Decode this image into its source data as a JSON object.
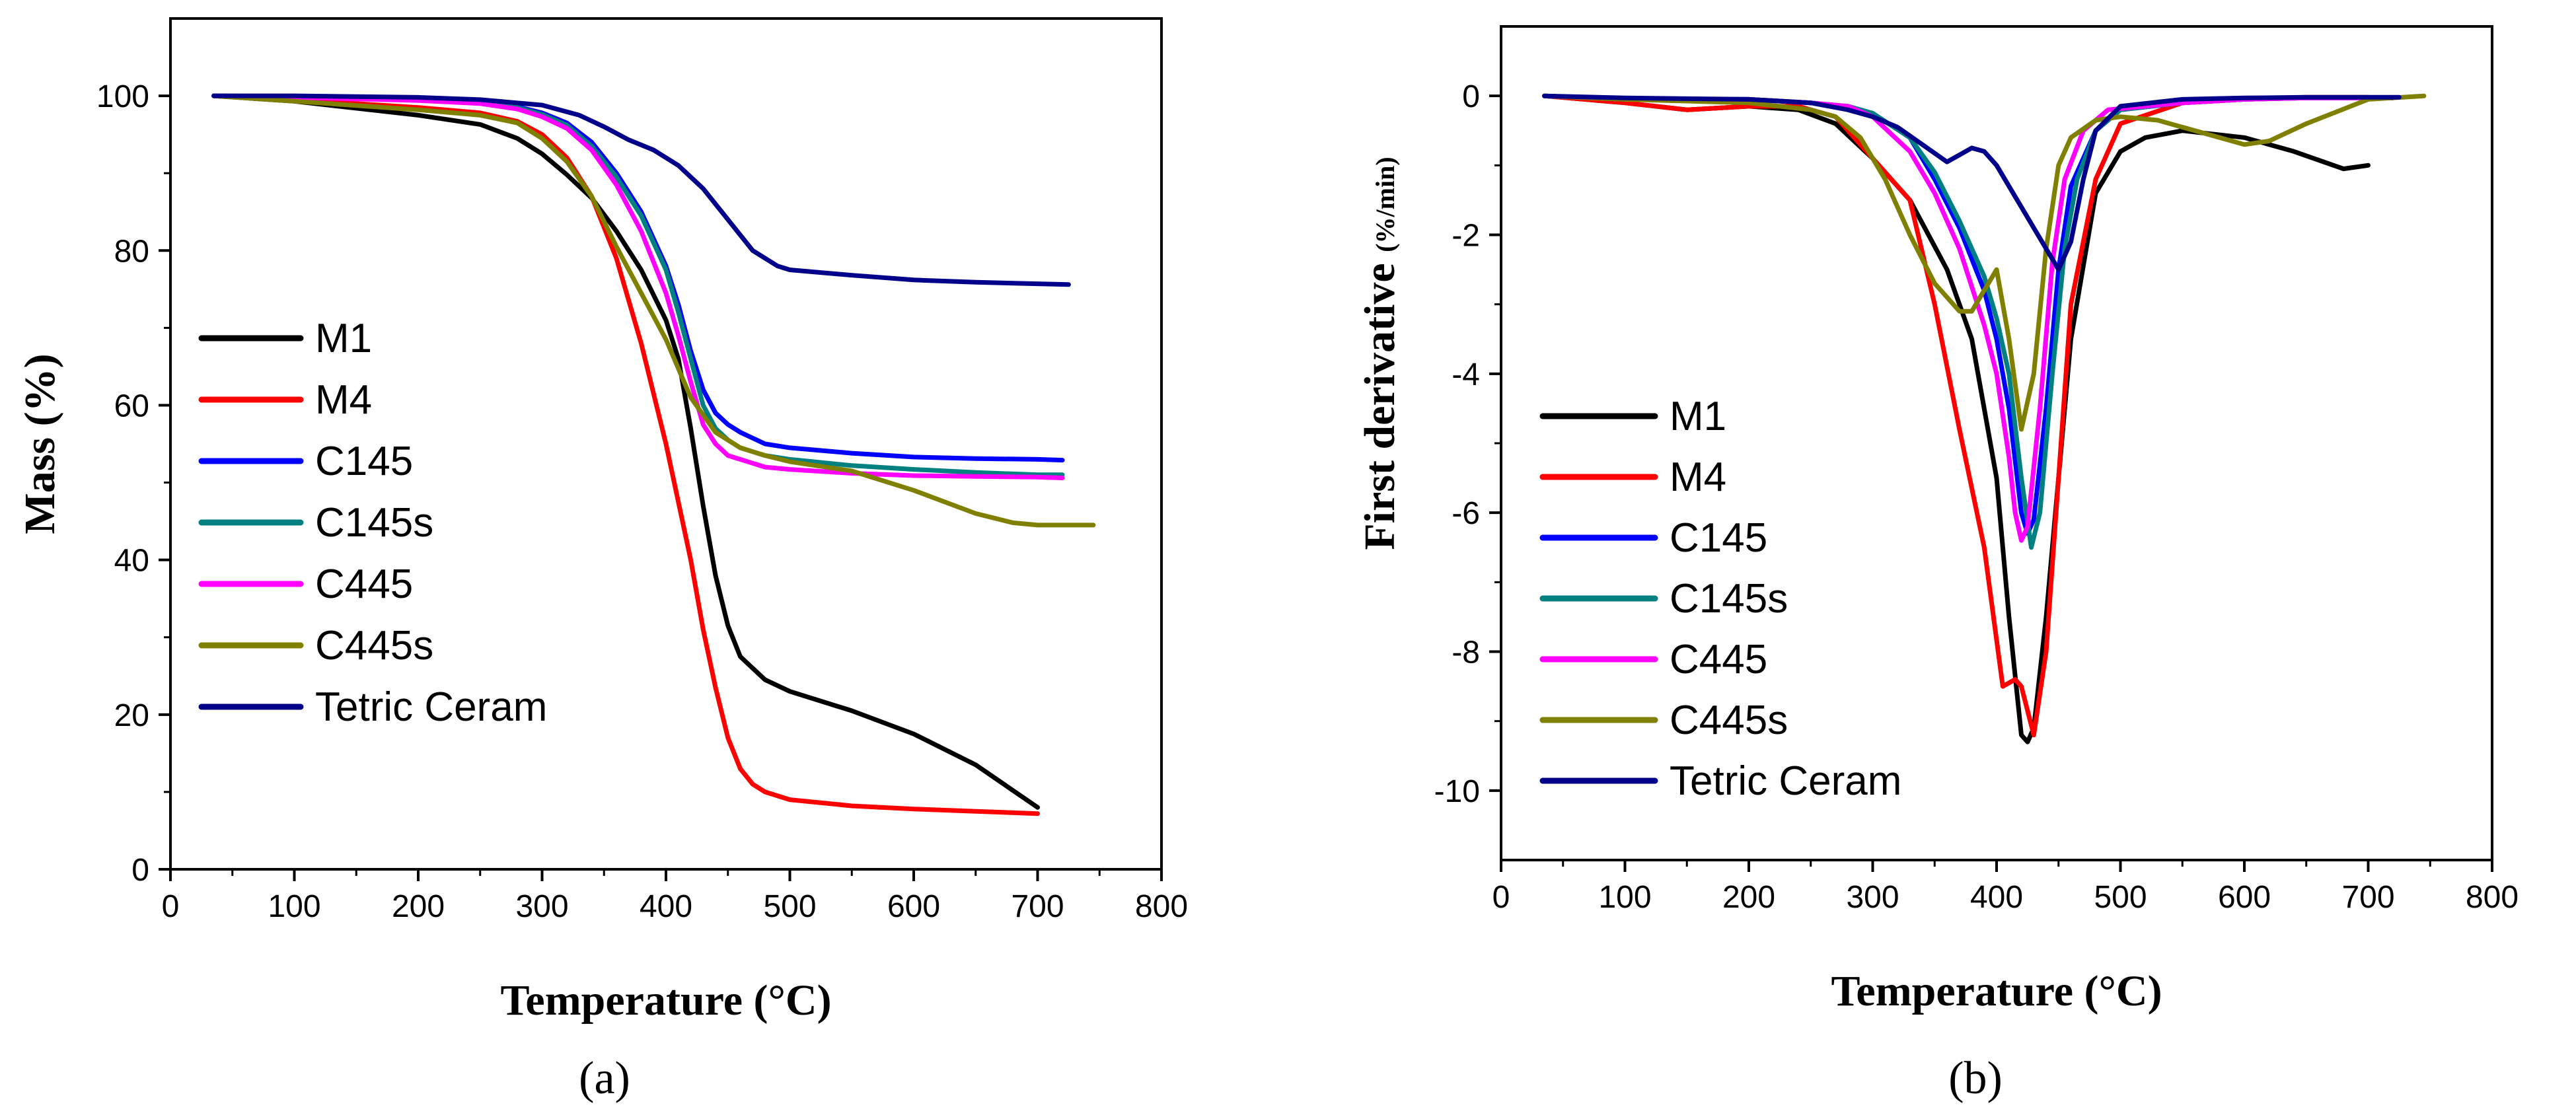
{
  "chart_data": [
    {
      "panel_label": "(a)",
      "type": "line",
      "xlabel": "Temperature (°C)",
      "ylabel": "Mass (%)",
      "xlim": [
        0,
        800
      ],
      "ylim": [
        0,
        110
      ],
      "xticks": [
        0,
        100,
        200,
        300,
        400,
        500,
        600,
        700,
        800
      ],
      "yticks": [
        0,
        20,
        40,
        60,
        80,
        100
      ],
      "legend_position": "left-center",
      "grid": false,
      "series": [
        {
          "name": "M1",
          "color": "#000000",
          "x": [
            35,
            100,
            200,
            250,
            280,
            300,
            320,
            340,
            360,
            380,
            400,
            410,
            420,
            430,
            440,
            450,
            460,
            480,
            500,
            550,
            600,
            650,
            700
          ],
          "y": [
            100,
            99.3,
            97.5,
            96.3,
            94.5,
            92.5,
            89.8,
            86.8,
            82.5,
            77.5,
            71,
            66,
            57,
            47,
            38,
            31.5,
            27.5,
            24.5,
            23,
            20.5,
            17.5,
            13.5,
            8
          ]
        },
        {
          "name": "M4",
          "color": "#ff0000",
          "x": [
            35,
            100,
            200,
            250,
            280,
            300,
            320,
            340,
            360,
            380,
            400,
            420,
            430,
            440,
            450,
            460,
            470,
            480,
            500,
            550,
            600,
            650,
            700
          ],
          "y": [
            100,
            99.5,
            98.5,
            97.8,
            96.7,
            95,
            92,
            87,
            79,
            68,
            55,
            40,
            31,
            23.5,
            17,
            13,
            11,
            10,
            9,
            8.2,
            7.8,
            7.5,
            7.2
          ]
        },
        {
          "name": "C145",
          "color": "#0000ff",
          "x": [
            35,
            100,
            200,
            250,
            280,
            300,
            320,
            340,
            360,
            380,
            400,
            410,
            420,
            430,
            440,
            450,
            460,
            480,
            500,
            550,
            600,
            650,
            700,
            720
          ],
          "y": [
            100,
            99.9,
            99.6,
            99.2,
            98.6,
            97.8,
            96.5,
            94,
            90,
            85,
            78,
            73,
            67,
            62,
            59,
            57.5,
            56.5,
            55,
            54.5,
            53.8,
            53.3,
            53.1,
            53,
            52.9
          ]
        },
        {
          "name": "C145s",
          "color": "#008080",
          "x": [
            35,
            100,
            200,
            250,
            280,
            300,
            320,
            340,
            360,
            380,
            400,
            410,
            420,
            430,
            440,
            450,
            460,
            480,
            500,
            550,
            600,
            650,
            700,
            720
          ],
          "y": [
            100,
            99.8,
            99.5,
            99.1,
            98.5,
            97.6,
            96.2,
            93.5,
            89.5,
            84.5,
            77.5,
            72,
            66,
            60,
            57,
            55.5,
            54.5,
            53.5,
            53,
            52.2,
            51.7,
            51.3,
            51,
            51
          ]
        },
        {
          "name": "C445",
          "color": "#ff00ff",
          "x": [
            35,
            100,
            200,
            250,
            280,
            300,
            320,
            340,
            360,
            380,
            400,
            410,
            420,
            430,
            440,
            450,
            460,
            480,
            500,
            550,
            600,
            650,
            700,
            720
          ],
          "y": [
            100,
            99.8,
            99.4,
            99,
            98.3,
            97.3,
            95.8,
            93,
            88.5,
            82.5,
            74.5,
            69,
            63,
            57.5,
            55,
            53.5,
            53,
            52,
            51.7,
            51.2,
            50.9,
            50.8,
            50.7,
            50.6
          ]
        },
        {
          "name": "C445s",
          "color": "#808000",
          "x": [
            35,
            100,
            200,
            250,
            280,
            300,
            320,
            340,
            360,
            380,
            400,
            420,
            440,
            460,
            480,
            500,
            550,
            600,
            650,
            680,
            700,
            720,
            745
          ],
          "y": [
            100,
            99.3,
            98.2,
            97.5,
            96.5,
            94.5,
            91.5,
            87,
            80.5,
            74.5,
            68.5,
            61,
            56.5,
            54.5,
            53.5,
            52.7,
            51.5,
            49,
            46,
            44.8,
            44.5,
            44.5,
            44.5
          ]
        },
        {
          "name": "Tetric Ceram",
          "color": "#00008b",
          "x": [
            35,
            100,
            200,
            250,
            300,
            330,
            350,
            370,
            390,
            410,
            430,
            450,
            470,
            490,
            500,
            550,
            600,
            650,
            700,
            725
          ],
          "y": [
            100,
            100,
            99.8,
            99.5,
            98.8,
            97.5,
            96,
            94.3,
            93,
            91,
            88,
            84,
            80,
            78,
            77.5,
            76.8,
            76.2,
            75.9,
            75.7,
            75.6
          ]
        }
      ]
    },
    {
      "panel_label": "(b)",
      "type": "line",
      "xlabel": "Temperature (°C)",
      "ylabel_main": "First derivative ",
      "ylabel_unit": "(%/min)",
      "xlim": [
        0,
        800
      ],
      "ylim": [
        -11,
        1
      ],
      "xticks": [
        0,
        100,
        200,
        300,
        400,
        500,
        600,
        700,
        800
      ],
      "yticks": [
        0,
        -2,
        -4,
        -6,
        -8,
        -10
      ],
      "legend_position": "left-lower",
      "grid": false,
      "series": [
        {
          "name": "M1",
          "color": "#000000",
          "x": [
            35,
            100,
            150,
            200,
            240,
            270,
            300,
            330,
            360,
            380,
            400,
            410,
            420,
            425,
            430,
            440,
            450,
            460,
            480,
            500,
            520,
            550,
            600,
            640,
            680,
            700
          ],
          "y": [
            0,
            -0.1,
            -0.2,
            -0.15,
            -0.2,
            -0.4,
            -0.9,
            -1.5,
            -2.5,
            -3.5,
            -5.5,
            -7.5,
            -9.2,
            -9.3,
            -9.1,
            -7.5,
            -5.5,
            -3.5,
            -1.4,
            -0.8,
            -0.6,
            -0.5,
            -0.6,
            -0.8,
            -1.05,
            -1.0
          ]
        },
        {
          "name": "M4",
          "color": "#ff0000",
          "x": [
            35,
            100,
            150,
            200,
            240,
            270,
            300,
            330,
            350,
            370,
            390,
            405,
            415,
            420,
            430,
            440,
            450,
            460,
            480,
            500,
            550,
            600,
            650,
            700
          ],
          "y": [
            0,
            -0.1,
            -0.2,
            -0.15,
            -0.15,
            -0.3,
            -0.9,
            -1.5,
            -3.0,
            -4.8,
            -6.5,
            -8.5,
            -8.4,
            -8.5,
            -9.2,
            -8.0,
            -5.5,
            -3.0,
            -1.2,
            -0.4,
            -0.1,
            -0.05,
            -0.02,
            -0.02
          ]
        },
        {
          "name": "C145",
          "color": "#0000ff",
          "x": [
            35,
            100,
            200,
            250,
            280,
            300,
            330,
            350,
            370,
            390,
            400,
            410,
            420,
            425,
            430,
            440,
            450,
            460,
            480,
            500,
            550,
            600,
            650,
            700,
            720
          ],
          "y": [
            0,
            -0.05,
            -0.05,
            -0.1,
            -0.15,
            -0.25,
            -0.6,
            -1.2,
            -1.9,
            -2.8,
            -3.5,
            -4.5,
            -6.0,
            -6.3,
            -6.1,
            -4.5,
            -2.5,
            -1.3,
            -0.5,
            -0.2,
            -0.1,
            -0.05,
            -0.03,
            -0.03,
            -0.03
          ]
        },
        {
          "name": "C145s",
          "color": "#008080",
          "x": [
            35,
            100,
            200,
            250,
            280,
            300,
            330,
            350,
            370,
            390,
            400,
            410,
            420,
            428,
            435,
            445,
            455,
            465,
            480,
            500,
            550,
            600,
            650,
            700,
            720
          ],
          "y": [
            0,
            -0.05,
            -0.05,
            -0.1,
            -0.15,
            -0.25,
            -0.6,
            -1.1,
            -1.8,
            -2.6,
            -3.2,
            -4.0,
            -5.5,
            -6.5,
            -6.0,
            -4.0,
            -2.2,
            -1.2,
            -0.5,
            -0.2,
            -0.1,
            -0.05,
            -0.03,
            -0.03,
            -0.03
          ]
        },
        {
          "name": "C445",
          "color": "#ff00ff",
          "x": [
            35,
            100,
            200,
            250,
            280,
            300,
            330,
            350,
            370,
            390,
            400,
            410,
            415,
            420,
            425,
            435,
            445,
            455,
            470,
            490,
            550,
            600,
            650,
            700,
            720
          ],
          "y": [
            0,
            -0.05,
            -0.05,
            -0.1,
            -0.15,
            -0.3,
            -0.8,
            -1.4,
            -2.2,
            -3.3,
            -4.0,
            -5.2,
            -6.0,
            -6.4,
            -6.2,
            -4.5,
            -2.4,
            -1.2,
            -0.5,
            -0.2,
            -0.1,
            -0.05,
            -0.03,
            -0.03,
            -0.03
          ]
        },
        {
          "name": "C445s",
          "color": "#808000",
          "x": [
            35,
            100,
            200,
            250,
            270,
            290,
            310,
            330,
            350,
            370,
            380,
            390,
            400,
            410,
            420,
            430,
            440,
            450,
            460,
            480,
            500,
            530,
            560,
            600,
            620,
            650,
            700,
            745
          ],
          "y": [
            0,
            -0.05,
            -0.1,
            -0.2,
            -0.3,
            -0.6,
            -1.2,
            -2.0,
            -2.7,
            -3.1,
            -3.1,
            -2.8,
            -2.5,
            -3.5,
            -4.8,
            -4.0,
            -2.2,
            -1.0,
            -0.6,
            -0.35,
            -0.3,
            -0.35,
            -0.5,
            -0.7,
            -0.65,
            -0.4,
            -0.05,
            0
          ]
        },
        {
          "name": "Tetric Ceram",
          "color": "#00008b",
          "x": [
            35,
            100,
            200,
            250,
            280,
            300,
            320,
            340,
            360,
            370,
            380,
            390,
            400,
            410,
            420,
            430,
            440,
            450,
            460,
            470,
            480,
            500,
            550,
            600,
            650,
            700,
            725
          ],
          "y": [
            0,
            -0.03,
            -0.05,
            -0.1,
            -0.2,
            -0.3,
            -0.45,
            -0.7,
            -0.95,
            -0.85,
            -0.75,
            -0.8,
            -1.0,
            -1.3,
            -1.6,
            -1.9,
            -2.2,
            -2.5,
            -2.1,
            -1.2,
            -0.5,
            -0.15,
            -0.05,
            -0.03,
            -0.02,
            -0.02,
            -0.02
          ]
        }
      ]
    }
  ]
}
